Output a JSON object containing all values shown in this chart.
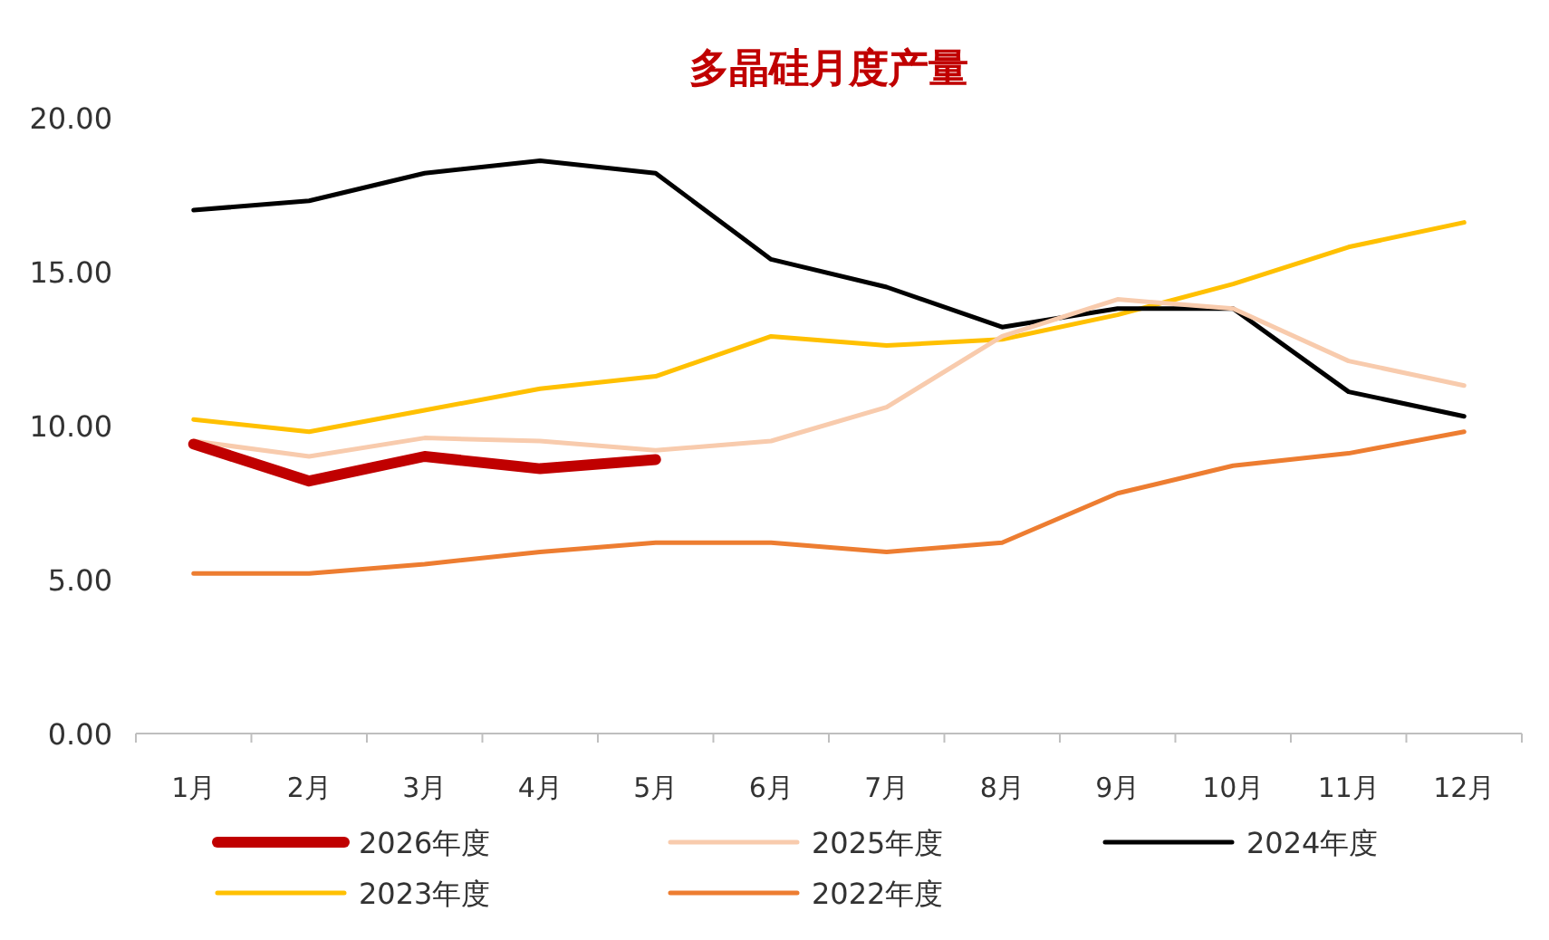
{
  "chart_data": {
    "type": "line",
    "title": "多晶硅月度产量",
    "categories": [
      "1月",
      "2月",
      "3月",
      "4月",
      "5月",
      "6月",
      "7月",
      "8月",
      "9月",
      "10月",
      "11月",
      "12月"
    ],
    "ylim": [
      0,
      20
    ],
    "yticks": [
      {
        "value": 0,
        "label": "0.00"
      },
      {
        "value": 5,
        "label": "5.00"
      },
      {
        "value": 10,
        "label": "10.00"
      },
      {
        "value": 15,
        "label": "15.00"
      },
      {
        "value": 20,
        "label": "20.00"
      }
    ],
    "grid": false,
    "legend": "bottom",
    "marker": "none",
    "line_style": "solid",
    "series": [
      {
        "name": "2026年度",
        "color": "#c00000",
        "values": [
          9.4,
          8.2,
          9.0,
          8.6,
          8.9,
          null,
          null,
          null,
          null,
          null,
          null,
          null
        ]
      },
      {
        "name": "2025年度",
        "color": "#f8cbad",
        "values": [
          9.5,
          9.0,
          9.6,
          9.5,
          9.2,
          9.5,
          10.6,
          12.9,
          14.1,
          13.8,
          12.1,
          11.3
        ]
      },
      {
        "name": "2024年度",
        "color": "#000000",
        "values": [
          17.0,
          17.3,
          18.2,
          18.6,
          18.2,
          15.4,
          14.5,
          13.2,
          13.8,
          13.8,
          11.1,
          10.3
        ]
      },
      {
        "name": "2023年度",
        "color": "#ffc000",
        "values": [
          10.2,
          9.8,
          10.5,
          11.2,
          11.6,
          12.9,
          12.6,
          12.8,
          13.6,
          14.6,
          15.8,
          16.6
        ]
      },
      {
        "name": "2022年度",
        "color": "#ed7d31",
        "values": [
          5.2,
          5.2,
          5.5,
          5.9,
          6.2,
          6.2,
          5.9,
          6.2,
          7.8,
          8.7,
          9.1,
          9.8
        ]
      }
    ]
  }
}
